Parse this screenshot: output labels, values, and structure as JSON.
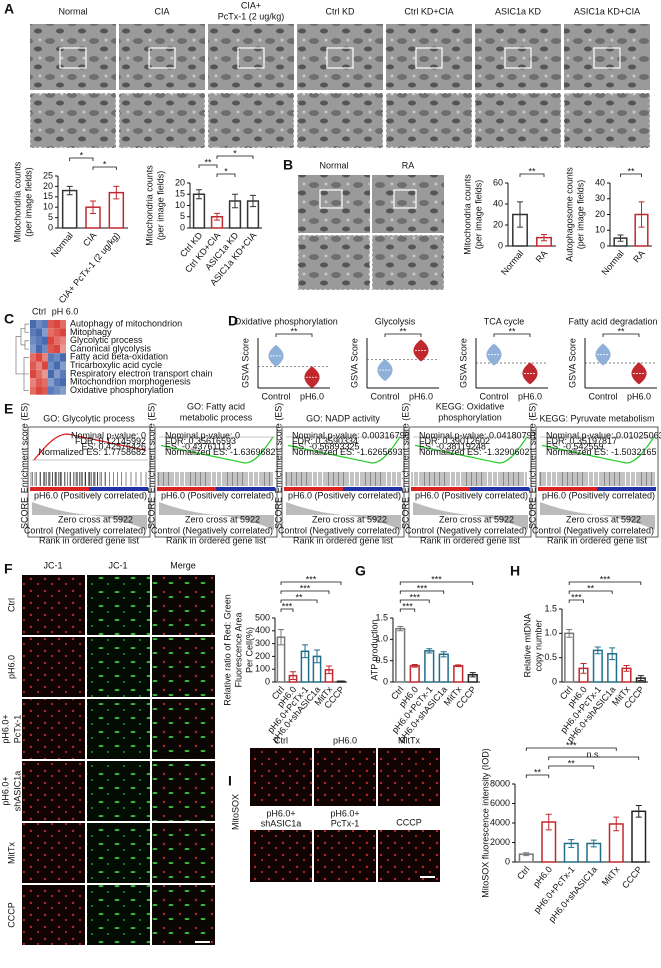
{
  "panel_letters": [
    "A",
    "B",
    "C",
    "D",
    "E",
    "F",
    "G",
    "H",
    "I"
  ],
  "panel_a_images": {
    "labels": [
      [
        "Normal"
      ],
      [
        "CIA"
      ],
      [
        "CIA+",
        "PcTx-1 (2 ug/kg)"
      ],
      [
        "Ctrl KD"
      ],
      [
        "Ctrl KD+CIA"
      ],
      [
        "ASIC1a KD"
      ],
      [
        "ASIC1a KD+CIA"
      ]
    ]
  },
  "panel_b_images": {
    "labels": [
      "Normal",
      "RA"
    ]
  },
  "panel_e": {
    "common": {
      "ylabel": "Enrichment score (ES)",
      "pos": "pH6.0 (Positively correlated)",
      "neg": "Control (Negatively correlated)",
      "zero": "Zero cross at 5922",
      "score": "SCORE",
      "xlabel": "Rank in ordered gene list"
    },
    "plots": [
      {
        "title": [
          "GO: Glycolytic process"
        ],
        "stats": [
          "Nominal p-value: 0",
          "FDR: 0.12145992",
          "ES: 0.42576426",
          "Normalized ES: 1.7758682"
        ]
      },
      {
        "title": [
          "GO: Fatty acid",
          "metabolic process"
        ],
        "stats": [
          "Nominal p-value: 0",
          "FDR: 0.35616593",
          "ES: -0.43761113",
          "Normalized ES: -1.6369682"
        ]
      },
      {
        "title": [
          "GO: NADP activity"
        ],
        "stats": [
          "Nominal p-value: 0.003167969",
          "FDR: 0.3590334",
          "ES: -0.56893325",
          "Normalized ES: -1.6265693"
        ]
      },
      {
        "title": [
          "KEGG: Oxidative",
          "phosphorylation"
        ],
        "stats": [
          "Nominal p-value: 0.04180791",
          "FDR: 0.39012602",
          "ES: -0.38119248",
          "Normalized ES: -1.3290602"
        ]
      },
      {
        "title": [
          "KEGG: Pyruvate metabolism"
        ],
        "stats": [
          "Nominal p-value: 0.01025063",
          "FDR: 0.35197817",
          "ES: -0.542559",
          "Normalized ES: -1.5032165"
        ]
      }
    ]
  },
  "panel_f_images": {
    "columns": [
      "JC-1",
      "JC-1",
      "Merge"
    ],
    "rows": [
      [
        "Ctrl"
      ],
      [
        "pH6.0"
      ],
      [
        "pH6.0+",
        "PcTx-1"
      ],
      [
        "pH6.0+",
        "shASIC1a"
      ],
      [
        "MitTx"
      ],
      [
        "CCCP"
      ]
    ]
  },
  "panel_i_images": {
    "side": "MitoSOX",
    "labels": [
      [
        "Ctrl"
      ],
      [
        "pH6.0"
      ],
      [
        "MitTx"
      ],
      [
        "pH6.0+",
        "shASIC1a"
      ],
      [
        "pH6.0+",
        "PcTx-1"
      ],
      [
        "CCCP"
      ]
    ]
  },
  "chart_data": [
    {
      "type": "bar",
      "ylabel": [
        "Mitochondria counts",
        "(per image fields)"
      ],
      "categories": [
        "Normal",
        "CIA",
        "CIA+ PcTx-1 (2 ug/kg)"
      ],
      "values": [
        18,
        10,
        17
      ],
      "errors": [
        2,
        3,
        3
      ],
      "colors": [
        "#333333",
        "#c0282d",
        "#c0282d"
      ],
      "ylim": [
        0,
        25
      ],
      "yticks": [
        0,
        5,
        10,
        15,
        20,
        25
      ],
      "significance": [
        {
          "from": 0,
          "to": 1,
          "label": "*"
        },
        {
          "from": 1,
          "to": 2,
          "label": "*"
        }
      ]
    },
    {
      "type": "bar",
      "ylabel": [
        "Mitochondria counts",
        "(per image fields)"
      ],
      "categories": [
        "Ctrl KD",
        "Ctrl KD+CIA",
        "ASIC1a KD",
        "ASIC1a KD+CIA"
      ],
      "values": [
        15,
        5,
        12,
        12
      ],
      "errors": [
        2,
        1.5,
        3,
        2.5
      ],
      "colors": [
        "#333333",
        "#c0282d",
        "#333333",
        "#333333"
      ],
      "ylim": [
        0,
        20
      ],
      "yticks": [
        0,
        5,
        10,
        15,
        20
      ],
      "significance": [
        {
          "from": 1,
          "to": 3,
          "label": "*"
        },
        {
          "from": 0,
          "to": 1,
          "label": "**"
        },
        {
          "from": 1,
          "to": 2,
          "label": "*"
        }
      ]
    },
    {
      "type": "bar",
      "ylabel": [
        "Mitochondria counts",
        "(per image fields)"
      ],
      "categories": [
        "Normal",
        "RA"
      ],
      "values": [
        30,
        8
      ],
      "errors": [
        12,
        3
      ],
      "colors": [
        "#333333",
        "#c0282d"
      ],
      "ylim": [
        0,
        60
      ],
      "yticks": [
        0,
        20,
        40,
        60
      ],
      "significance": [
        {
          "from": 0,
          "to": 1,
          "label": "**"
        }
      ]
    },
    {
      "type": "bar",
      "ylabel": [
        "Autophagosome counts",
        "(per image fields)"
      ],
      "categories": [
        "Normal",
        "RA"
      ],
      "values": [
        5,
        20
      ],
      "errors": [
        2,
        8
      ],
      "colors": [
        "#333333",
        "#c0282d"
      ],
      "ylim": [
        0,
        40
      ],
      "yticks": [
        0,
        10,
        20,
        30,
        40
      ],
      "significance": [
        {
          "from": 0,
          "to": 1,
          "label": "**"
        }
      ]
    },
    {
      "type": "heatmap",
      "columns": [
        "Ctrl",
        "pH 6.0"
      ],
      "rows": [
        "Autophagy of mitochondrion",
        "Mitophagy",
        "Glycolytic process",
        "Canonical glycolysis",
        "Fatty acid beta-oxidation",
        "Tricarboxylic acid cycle",
        "Respiratory electron transport chain",
        "Mitochondrion morphogenesis",
        "Oxidative phosphorylation"
      ],
      "values": [
        [
          -0.9,
          -0.7,
          -0.8,
          0.8,
          0.9,
          0.7
        ],
        [
          -0.8,
          -0.9,
          -0.6,
          0.7,
          0.8,
          0.9
        ],
        [
          -0.7,
          -0.8,
          -0.9,
          0.9,
          0.7,
          0.6
        ],
        [
          -0.6,
          -0.9,
          -0.7,
          0.8,
          0.9,
          0.5
        ],
        [
          0.7,
          0.9,
          0.6,
          -0.8,
          -0.7,
          -0.9
        ],
        [
          0.8,
          0.6,
          0.9,
          -0.7,
          -0.9,
          -0.6
        ],
        [
          0.9,
          0.7,
          0.5,
          -0.9,
          -0.6,
          -0.8
        ],
        [
          0.6,
          0.8,
          0.7,
          -0.6,
          -0.8,
          -0.9
        ],
        [
          0.7,
          0.9,
          0.8,
          -0.8,
          -0.7,
          -0.6
        ]
      ]
    },
    {
      "type": "violin",
      "title": "Oxidative phosphorylation",
      "ylabel": "GSVA Score",
      "categories": [
        "Control",
        "pH6.0"
      ],
      "values": [
        0.3,
        -0.3
      ],
      "colors": [
        "#8fb0d8",
        "#c0282d"
      ],
      "ylim": [
        -0.6,
        0.8
      ],
      "significance": [
        {
          "from": 0,
          "to": 1,
          "label": "**"
        }
      ]
    },
    {
      "type": "violin",
      "title": "Glycolysis",
      "ylabel": "GSVA Score",
      "categories": [
        "Control",
        "pH6.0"
      ],
      "values": [
        -0.3,
        0.25
      ],
      "colors": [
        "#8fb0d8",
        "#c0282d"
      ],
      "ylim": [
        -0.8,
        0.6
      ],
      "significance": [
        {
          "from": 0,
          "to": 1,
          "label": "**"
        }
      ]
    },
    {
      "type": "violin",
      "title": "TCA cycle",
      "ylabel": "GSVA Score",
      "categories": [
        "Control",
        "pH6.0"
      ],
      "values": [
        0.2,
        -0.25
      ],
      "colors": [
        "#8fb0d8",
        "#c0282d"
      ],
      "ylim": [
        -0.6,
        0.6
      ],
      "significance": [
        {
          "from": 0,
          "to": 1,
          "label": "**"
        }
      ]
    },
    {
      "type": "violin",
      "title": "Fatty acid degradation",
      "ylabel": "GSVA Score",
      "categories": [
        "Control",
        "pH6.0"
      ],
      "values": [
        0.2,
        -0.25
      ],
      "colors": [
        "#8fb0d8",
        "#c0282d"
      ],
      "ylim": [
        -0.6,
        0.6
      ],
      "significance": [
        {
          "from": 0,
          "to": 1,
          "label": "**"
        }
      ]
    },
    {
      "type": "bar",
      "ylabel": [
        "Relative ratio of Red: Green",
        "Fluorescence Area",
        "Per Cell(%)"
      ],
      "categories": [
        "Ctrl",
        "pH6.0",
        "pH6.0+PcTx-1",
        "pH6.0+shASIC1a",
        "MitTx",
        "CCCP"
      ],
      "values": [
        350,
        50,
        240,
        200,
        95,
        5
      ],
      "errors": [
        60,
        30,
        50,
        50,
        30,
        3
      ],
      "colors": [
        "#777777",
        "#c0282d",
        "#1f6f8b",
        "#1f6f8b",
        "#c0282d",
        "#222222"
      ],
      "ylim": [
        0,
        500
      ],
      "yticks": [
        0,
        100,
        200,
        300,
        400,
        500
      ],
      "significance": [
        {
          "from": 0,
          "to": 5,
          "label": "***"
        },
        {
          "from": 0,
          "to": 4,
          "label": "***"
        },
        {
          "from": 0,
          "to": 3,
          "label": "**"
        },
        {
          "from": 0,
          "to": 1,
          "label": "***"
        }
      ]
    },
    {
      "type": "bar",
      "ylabel": [
        "ATP production"
      ],
      "categories": [
        "Ctrl",
        "pH6.0",
        "pH6.0+PcTx-1",
        "pH6.0+shASIC1a",
        "MitTx",
        "CCCP"
      ],
      "values": [
        1.25,
        0.38,
        0.73,
        0.65,
        0.38,
        0.17
      ],
      "errors": [
        0.05,
        0.03,
        0.05,
        0.06,
        0.02,
        0.05
      ],
      "colors": [
        "#777777",
        "#c0282d",
        "#1f6f8b",
        "#1f6f8b",
        "#c0282d",
        "#222222"
      ],
      "ylim": [
        0,
        1.5
      ],
      "yticks": [
        0,
        0.5,
        {
          "value": 1,
          "label": "1.0"
        },
        1.5
      ],
      "significance": [
        {
          "from": 0,
          "to": 5,
          "label": "***"
        },
        {
          "from": 0,
          "to": 3,
          "label": "***"
        },
        {
          "from": 0,
          "to": 2,
          "label": "***"
        },
        {
          "from": 0,
          "to": 1,
          "label": "***"
        }
      ]
    },
    {
      "type": "bar",
      "ylabel": [
        "Relative mtDNA",
        "copy number"
      ],
      "categories": [
        "Ctrl",
        "pH6.0",
        "pH6.0+PcTx-1",
        "pH6.0+shASIC1a",
        "MitTx",
        "CCCP"
      ],
      "values": [
        1.0,
        0.28,
        0.65,
        0.58,
        0.28,
        0.08
      ],
      "errors": [
        0.08,
        0.1,
        0.07,
        0.12,
        0.06,
        0.05
      ],
      "colors": [
        "#777777",
        "#c0282d",
        "#1f6f8b",
        "#1f6f8b",
        "#c0282d",
        "#222222"
      ],
      "ylim": [
        0,
        1.5
      ],
      "yticks": [
        0,
        0.5,
        {
          "value": 1,
          "label": "1.0"
        },
        1.5
      ],
      "significance": [
        {
          "from": 0,
          "to": 5,
          "label": "***"
        },
        {
          "from": 0,
          "to": 3,
          "label": "**"
        },
        {
          "from": 0,
          "to": 1,
          "label": "***"
        }
      ]
    },
    {
      "type": "bar",
      "ylabel": [
        "MitoSOX fluorescence intensity (IOD)"
      ],
      "categories": [
        "Ctrl",
        "pH6.0",
        "pH6.0+PcTx-1",
        "pH6.0+shASIC1a",
        "MitTx",
        "CCCP"
      ],
      "values": [
        800,
        4100,
        1900,
        1900,
        3900,
        5200
      ],
      "errors": [
        150,
        800,
        400,
        350,
        700,
        600
      ],
      "colors": [
        "#777777",
        "#c0282d",
        "#1f6f8b",
        "#1f6f8b",
        "#c0282d",
        "#222222"
      ],
      "ylim": [
        0,
        8000
      ],
      "yticks": [
        0,
        2000,
        4000,
        6000,
        8000
      ],
      "significance": [
        {
          "from": 0,
          "to": 4,
          "label": "***"
        },
        {
          "from": 1,
          "to": 5,
          "label": "n.s."
        },
        {
          "from": 1,
          "to": 3,
          "label": "**"
        },
        {
          "from": 0,
          "to": 1,
          "label": "**"
        }
      ]
    }
  ]
}
